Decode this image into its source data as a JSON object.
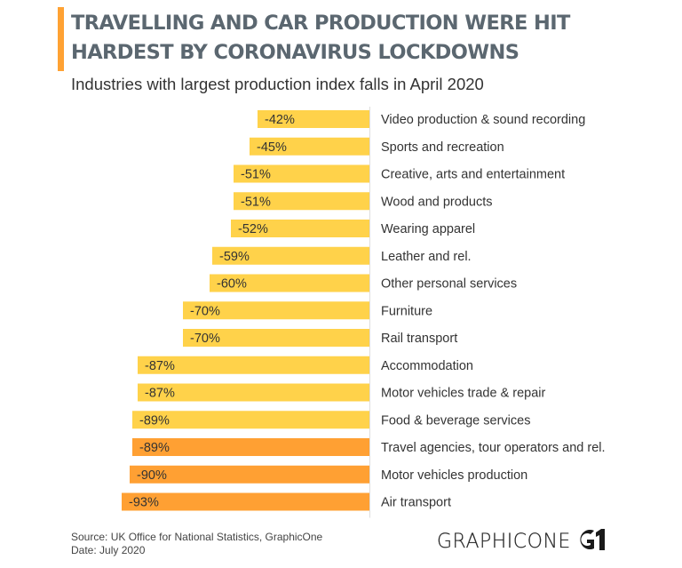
{
  "header": {
    "title_line1": "TRAVELLING AND CAR PRODUCTION WERE HIT",
    "title_line2": "HARDEST BY CORONAVIRUS LOCKDOWNS",
    "subtitle": "Industries with largest production index falls in April 2020"
  },
  "footer": {
    "source": "Source: UK Office for National Statistics, GraphicOne",
    "date": "Date: July 2020",
    "logo_text": "GRAPHICONE",
    "logo_mark": "G1"
  },
  "colors": {
    "accent": "#ffa233",
    "bar_default": "#ffd24a",
    "bar_highlight": "#ffa033",
    "axis": "#dddddd"
  },
  "chart_data": {
    "type": "bar",
    "orientation": "horizontal",
    "title": "Travelling and car production were hit hardest by coronavirus lockdowns",
    "subtitle": "Industries with largest production index falls in April 2020",
    "xlabel": "",
    "ylabel": "",
    "unit": "%",
    "xlim": [
      -100,
      0
    ],
    "grid": false,
    "legend": "none",
    "categories": [
      "Video production & sound recording",
      "Sports and recreation",
      "Creative, arts and entertainment",
      "Wood and products",
      "Wearing apparel",
      "Leather and rel.",
      "Other personal services",
      "Furniture",
      "Rail transport",
      "Accommodation",
      "Motor vehicles trade & repair",
      "Food & beverage services",
      "Travel agencies, tour operators and rel.",
      "Motor vehicles production",
      "Air transport"
    ],
    "values": [
      -42,
      -45,
      -51,
      -51,
      -52,
      -59,
      -60,
      -70,
      -70,
      -87,
      -87,
      -89,
      -89,
      -90,
      -93
    ],
    "labels": [
      "-42%",
      "-45%",
      "-51%",
      "-51%",
      "-52%",
      "-59%",
      "-60%",
      "-70%",
      "-70%",
      "-87%",
      "-87%",
      "-89%",
      "-89%",
      "-90%",
      "-93%"
    ],
    "highlighted": [
      false,
      false,
      false,
      false,
      false,
      false,
      false,
      false,
      false,
      false,
      false,
      false,
      true,
      true,
      true
    ]
  }
}
